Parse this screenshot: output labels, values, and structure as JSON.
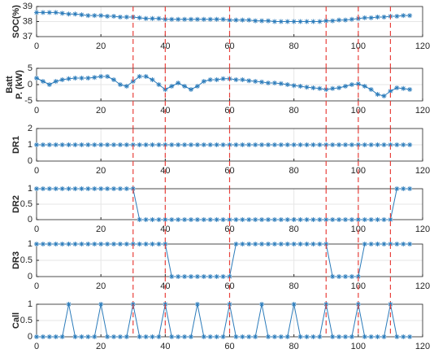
{
  "chart_data": [
    {
      "type": "line",
      "ylabel": [
        "SOC(%)"
      ],
      "color": "#2b7bba",
      "grid": true,
      "vline_color": "#e8413c",
      "vlines": [
        30,
        40,
        60,
        90,
        100,
        110
      ],
      "xlim": [
        0,
        120
      ],
      "xticks": [
        0,
        20,
        40,
        60,
        80,
        100,
        120
      ],
      "ylim": [
        37,
        39
      ],
      "yticks": [
        37,
        38,
        39
      ],
      "x": [
        0,
        2,
        4,
        6,
        8,
        10,
        12,
        14,
        16,
        18,
        20,
        22,
        24,
        26,
        28,
        30,
        32,
        34,
        36,
        38,
        40,
        42,
        44,
        46,
        48,
        50,
        52,
        54,
        56,
        58,
        60,
        62,
        64,
        66,
        68,
        70,
        72,
        74,
        76,
        78,
        80,
        82,
        84,
        86,
        88,
        90,
        92,
        94,
        96,
        98,
        100,
        102,
        104,
        106,
        108,
        110,
        112,
        114,
        116
      ],
      "values": [
        38.6,
        38.6,
        38.6,
        38.6,
        38.55,
        38.5,
        38.5,
        38.45,
        38.4,
        38.4,
        38.4,
        38.35,
        38.35,
        38.3,
        38.3,
        38.3,
        38.25,
        38.2,
        38.2,
        38.2,
        38.15,
        38.15,
        38.15,
        38.15,
        38.15,
        38.15,
        38.15,
        38.15,
        38.15,
        38.15,
        38.1,
        38.1,
        38.1,
        38.1,
        38.05,
        38.05,
        38.05,
        38.0,
        38.0,
        38.0,
        38.0,
        38.0,
        38.0,
        38.0,
        38.0,
        38.05,
        38.05,
        38.1,
        38.1,
        38.15,
        38.2,
        38.25,
        38.25,
        38.3,
        38.3,
        38.35,
        38.35,
        38.4,
        38.4
      ]
    },
    {
      "type": "line",
      "ylabel": [
        "Batt",
        "P. (kW)"
      ],
      "color": "#2b7bba",
      "grid": true,
      "vline_color": "#e8413c",
      "vlines": [
        30,
        40,
        60,
        90,
        100,
        110
      ],
      "xlim": [
        0,
        120
      ],
      "xticks": [
        0,
        20,
        40,
        60,
        80,
        100,
        120
      ],
      "ylim": [
        -5,
        5
      ],
      "yticks": [
        -5,
        0,
        5
      ],
      "x": [
        0,
        2,
        4,
        6,
        8,
        10,
        12,
        14,
        16,
        18,
        20,
        22,
        24,
        26,
        28,
        30,
        32,
        34,
        36,
        38,
        40,
        42,
        44,
        46,
        48,
        50,
        52,
        54,
        56,
        58,
        60,
        62,
        64,
        66,
        68,
        70,
        72,
        74,
        76,
        78,
        80,
        82,
        84,
        86,
        88,
        90,
        92,
        94,
        96,
        98,
        100,
        102,
        104,
        106,
        108,
        110,
        112,
        114,
        116
      ],
      "values": [
        2,
        1,
        0,
        1,
        1.5,
        1.8,
        2,
        2,
        2,
        2.2,
        2.5,
        2.5,
        1.5,
        0,
        -0.5,
        1,
        2.5,
        2.5,
        1.5,
        0,
        -1.5,
        -0.5,
        0.5,
        -0.5,
        -1.5,
        -0.5,
        1,
        1.5,
        1.5,
        1.8,
        1.8,
        1.5,
        1.5,
        1.2,
        1,
        0.8,
        0.5,
        0.5,
        0.3,
        0,
        -0.3,
        -0.5,
        -0.8,
        -1,
        -1.2,
        -1.5,
        -1.2,
        -1,
        -0.5,
        0,
        0.2,
        -0.5,
        -1.5,
        -3,
        -3.5,
        -2,
        -1,
        -1.2,
        -1.5
      ]
    },
    {
      "type": "line",
      "ylabel": [
        "DR1"
      ],
      "color": "#2b7bba",
      "grid": true,
      "vline_color": "#e8413c",
      "vlines": [
        30,
        40,
        60,
        90,
        100,
        110
      ],
      "xlim": [
        0,
        120
      ],
      "xticks": [
        0,
        20,
        40,
        60,
        80,
        100,
        120
      ],
      "ylim": [
        0,
        2
      ],
      "yticks": [
        0,
        1,
        2
      ],
      "x": [
        0,
        2,
        4,
        6,
        8,
        10,
        12,
        14,
        16,
        18,
        20,
        22,
        24,
        26,
        28,
        30,
        32,
        34,
        36,
        38,
        40,
        42,
        44,
        46,
        48,
        50,
        52,
        54,
        56,
        58,
        60,
        62,
        64,
        66,
        68,
        70,
        72,
        74,
        76,
        78,
        80,
        82,
        84,
        86,
        88,
        90,
        92,
        94,
        96,
        98,
        100,
        102,
        104,
        106,
        108,
        110,
        112,
        114,
        116
      ],
      "values": [
        1,
        1,
        1,
        1,
        1,
        1,
        1,
        1,
        1,
        1,
        1,
        1,
        1,
        1,
        1,
        1,
        1,
        1,
        1,
        1,
        1,
        1,
        1,
        1,
        1,
        1,
        1,
        1,
        1,
        1,
        1,
        1,
        1,
        1,
        1,
        1,
        1,
        1,
        1,
        1,
        1,
        1,
        1,
        1,
        1,
        1,
        1,
        1,
        1,
        1,
        1,
        1,
        1,
        1,
        1,
        1,
        1,
        1,
        1
      ]
    },
    {
      "type": "line",
      "ylabel": [
        "DR2"
      ],
      "color": "#2b7bba",
      "grid": true,
      "vline_color": "#e8413c",
      "vlines": [
        30,
        40,
        60,
        90,
        100,
        110
      ],
      "xlim": [
        0,
        120
      ],
      "xticks": [
        0,
        20,
        40,
        60,
        80,
        100,
        120
      ],
      "ylim": [
        0,
        1
      ],
      "yticks": [
        0,
        0.5,
        1
      ],
      "x": [
        0,
        2,
        4,
        6,
        8,
        10,
        12,
        14,
        16,
        18,
        20,
        22,
        24,
        26,
        28,
        30,
        32,
        34,
        36,
        38,
        40,
        42,
        44,
        46,
        48,
        50,
        52,
        54,
        56,
        58,
        60,
        62,
        64,
        66,
        68,
        70,
        72,
        74,
        76,
        78,
        80,
        82,
        84,
        86,
        88,
        90,
        92,
        94,
        96,
        98,
        100,
        102,
        104,
        106,
        108,
        110,
        112,
        114,
        116
      ],
      "values": [
        1,
        1,
        1,
        1,
        1,
        1,
        1,
        1,
        1,
        1,
        1,
        1,
        1,
        1,
        1,
        1,
        0,
        0,
        0,
        0,
        0,
        0,
        0,
        0,
        0,
        0,
        0,
        0,
        0,
        0,
        0,
        0,
        0,
        0,
        0,
        0,
        0,
        0,
        0,
        0,
        0,
        0,
        0,
        0,
        0,
        0,
        0,
        0,
        0,
        0,
        0,
        0,
        0,
        0,
        0,
        0,
        1,
        1,
        1
      ]
    },
    {
      "type": "line",
      "ylabel": [
        "DR3"
      ],
      "color": "#2b7bba",
      "grid": true,
      "vline_color": "#e8413c",
      "vlines": [
        30,
        40,
        60,
        90,
        100,
        110
      ],
      "xlim": [
        0,
        120
      ],
      "xticks": [
        0,
        20,
        40,
        60,
        80,
        100,
        120
      ],
      "ylim": [
        0,
        1
      ],
      "yticks": [
        0,
        0.5,
        1
      ],
      "x": [
        0,
        2,
        4,
        6,
        8,
        10,
        12,
        14,
        16,
        18,
        20,
        22,
        24,
        26,
        28,
        30,
        32,
        34,
        36,
        38,
        40,
        42,
        44,
        46,
        48,
        50,
        52,
        54,
        56,
        58,
        60,
        62,
        64,
        66,
        68,
        70,
        72,
        74,
        76,
        78,
        80,
        82,
        84,
        86,
        88,
        90,
        92,
        94,
        96,
        98,
        100,
        102,
        104,
        106,
        108,
        110,
        112,
        114,
        116
      ],
      "values": [
        1,
        1,
        1,
        1,
        1,
        1,
        1,
        1,
        1,
        1,
        1,
        1,
        1,
        1,
        1,
        1,
        1,
        1,
        1,
        1,
        1,
        0,
        0,
        0,
        0,
        0,
        0,
        0,
        0,
        0,
        0,
        1,
        1,
        1,
        1,
        1,
        1,
        1,
        1,
        1,
        1,
        1,
        1,
        1,
        1,
        1,
        0,
        0,
        0,
        0,
        0,
        1,
        1,
        1,
        1,
        1,
        1,
        1,
        1
      ]
    },
    {
      "type": "line",
      "ylabel": [
        "Call"
      ],
      "color": "#2b7bba",
      "grid": true,
      "vline_color": "#e8413c",
      "vlines": [
        30,
        40,
        60,
        90,
        100,
        110
      ],
      "xlim": [
        0,
        120
      ],
      "xticks": [
        0,
        20,
        40,
        60,
        80,
        100,
        120
      ],
      "ylim": [
        0,
        1
      ],
      "yticks": [
        0,
        0.5,
        1
      ],
      "x": [
        0,
        2,
        4,
        6,
        8,
        10,
        12,
        14,
        16,
        18,
        20,
        22,
        24,
        26,
        28,
        30,
        32,
        34,
        36,
        38,
        40,
        42,
        44,
        46,
        48,
        50,
        52,
        54,
        56,
        58,
        60,
        62,
        64,
        66,
        68,
        70,
        72,
        74,
        76,
        78,
        80,
        82,
        84,
        86,
        88,
        90,
        92,
        94,
        96,
        98,
        100,
        102,
        104,
        106,
        108,
        110,
        112,
        114,
        116
      ],
      "values": [
        0,
        0,
        0,
        0,
        0,
        1,
        0,
        0,
        0,
        0,
        1,
        0,
        0,
        0,
        0,
        1,
        0,
        0,
        0,
        0,
        1,
        0,
        0,
        0,
        0,
        1,
        0,
        0,
        0,
        0,
        1,
        0,
        0,
        0,
        0,
        1,
        0,
        0,
        0,
        0,
        1,
        0,
        0,
        0,
        0,
        1,
        0,
        0,
        0,
        0,
        1,
        0,
        0,
        0,
        0,
        1,
        0,
        0,
        0
      ]
    }
  ]
}
